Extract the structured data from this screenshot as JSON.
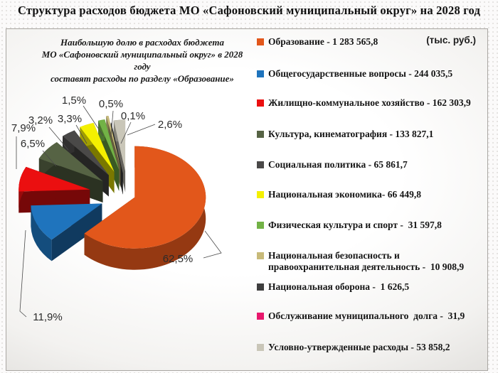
{
  "title": "Структура расходов бюджета  МО «Сафоновский муниципальный округ» на  2028 год",
  "note": {
    "lines": [
      "Наибольшую долю в расходах бюджета",
      "МО «Сафоновский муниципальный округ» в 2028",
      "году",
      "составят расходы по разделу «Образование»"
    ]
  },
  "units_label": "(тыс. руб.)",
  "chart_data": {
    "type": "pie",
    "style": "3d-exploded",
    "title": "Структура расходов бюджета МО «Сафоновский муниципальный округ» на 2028 год",
    "units": "тыс. руб.",
    "legend_position": "right",
    "series": [
      {
        "name": "Образование",
        "value": 1283565.8,
        "pct": 62.5,
        "pct_label": "62,5%",
        "legend_label": "Образование - 1 283 565,8",
        "color": "#E2571B"
      },
      {
        "name": "Общегосударственные вопросы",
        "value": 244035.5,
        "pct": 11.9,
        "pct_label": "11,9%",
        "legend_label": "Общегосударственные вопросы - 244 035,5",
        "color": "#1F74BD"
      },
      {
        "name": "Жилищно-коммунальное хозяйство",
        "value": 162303.9,
        "pct": 7.9,
        "pct_label": "7,9%",
        "legend_label": "Жилищно-коммунальное хозяйство - 162 303,9",
        "color": "#EB0F10"
      },
      {
        "name": "Культура, кинематография",
        "value": 133827.1,
        "pct": 6.5,
        "pct_label": "6,5%",
        "legend_label": "Культура, кинематография - 133 827,1",
        "color": "#566344"
      },
      {
        "name": "Социальная политика",
        "value": 65861.7,
        "pct": 3.2,
        "pct_label": "3,2%",
        "legend_label": "Социальная политика - 65 861,7",
        "color": "#4A4948"
      },
      {
        "name": "Национальная экономика",
        "value": 66449.8,
        "pct": 3.3,
        "pct_label": "3,3%",
        "legend_label": "Национальная экономика- 66 449,8",
        "color": "#F4F000"
      },
      {
        "name": "Физическая культура и спорт",
        "value": 31597.8,
        "pct": 1.5,
        "pct_label": "1,5%",
        "legend_label": "Физическая культура и спорт -  31 597,8",
        "color": "#72B246"
      },
      {
        "name": "Национальная безопасность и правоохранительная деятельность",
        "value": 10908.9,
        "pct": 0.5,
        "pct_label": "0,5%",
        "legend_label": "Национальная безопасность и правоохранительная деятельность -  10 908,9",
        "color": "#C8BA79"
      },
      {
        "name": "Национальная оборона",
        "value": 1626.5,
        "pct": 0.1,
        "pct_label": "0,1%",
        "legend_label": "Национальная оборона -  1 626,5",
        "color": "#3E3E3E"
      },
      {
        "name": "Обслуживание муниципального долга",
        "value": 31.9,
        "pct": 0.0,
        "pct_label": "",
        "legend_label": "Обслуживание муниципального  долга -  31,9",
        "color": "#E8186D"
      },
      {
        "name": "Условно-утвержденные расходы",
        "value": 53858.2,
        "pct": 2.6,
        "pct_label": "2,6%",
        "legend_label": "Условно-утвержденные расходы - 53 858,2",
        "color": "#C9C6B8"
      }
    ]
  }
}
